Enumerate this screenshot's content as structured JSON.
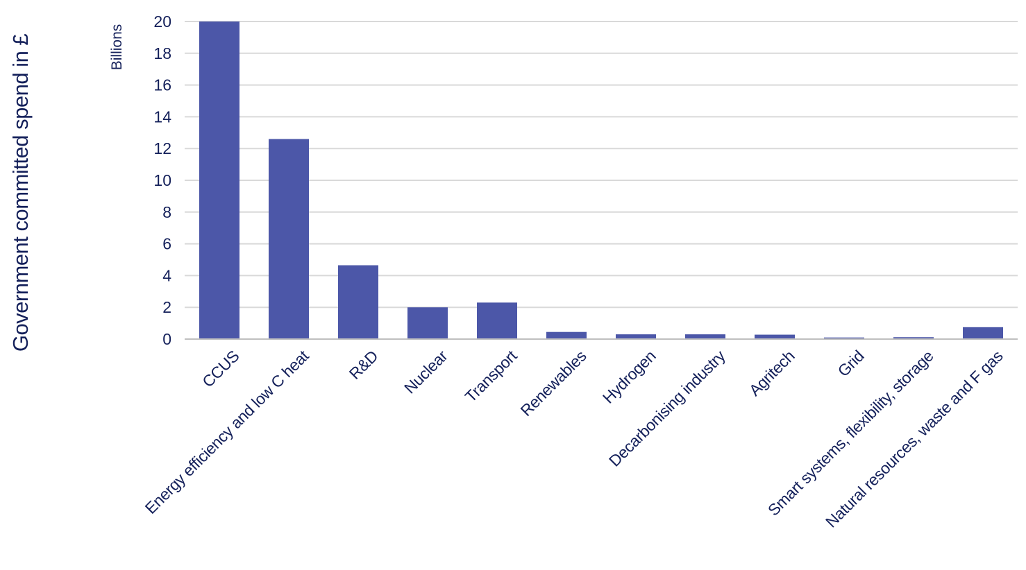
{
  "chart_data": {
    "type": "bar",
    "ylabel": "Government committed spend in £",
    "yunit": "Billions",
    "ylim": [
      0,
      20
    ],
    "yticks": [
      0,
      2,
      4,
      6,
      8,
      10,
      12,
      14,
      16,
      18,
      20
    ],
    "grid": true,
    "categories": [
      "CCUS",
      "Energy efficiency and low C heat",
      "R&D",
      "Nuclear",
      "Transport",
      "Renewables",
      "Hydrogen",
      "Decarbonising industry",
      "Agritech",
      "Grid",
      "Smart systems, flexibility, storage",
      "Natural resources, waste and F gas"
    ],
    "values": [
      20,
      12.6,
      4.65,
      2.0,
      2.3,
      0.45,
      0.3,
      0.3,
      0.28,
      0.1,
      0.12,
      0.75
    ],
    "colors": {
      "bar": "#4c57a8",
      "text": "#14205a",
      "grid": "#d9d9d9",
      "axis": "#bfbfbf"
    }
  }
}
